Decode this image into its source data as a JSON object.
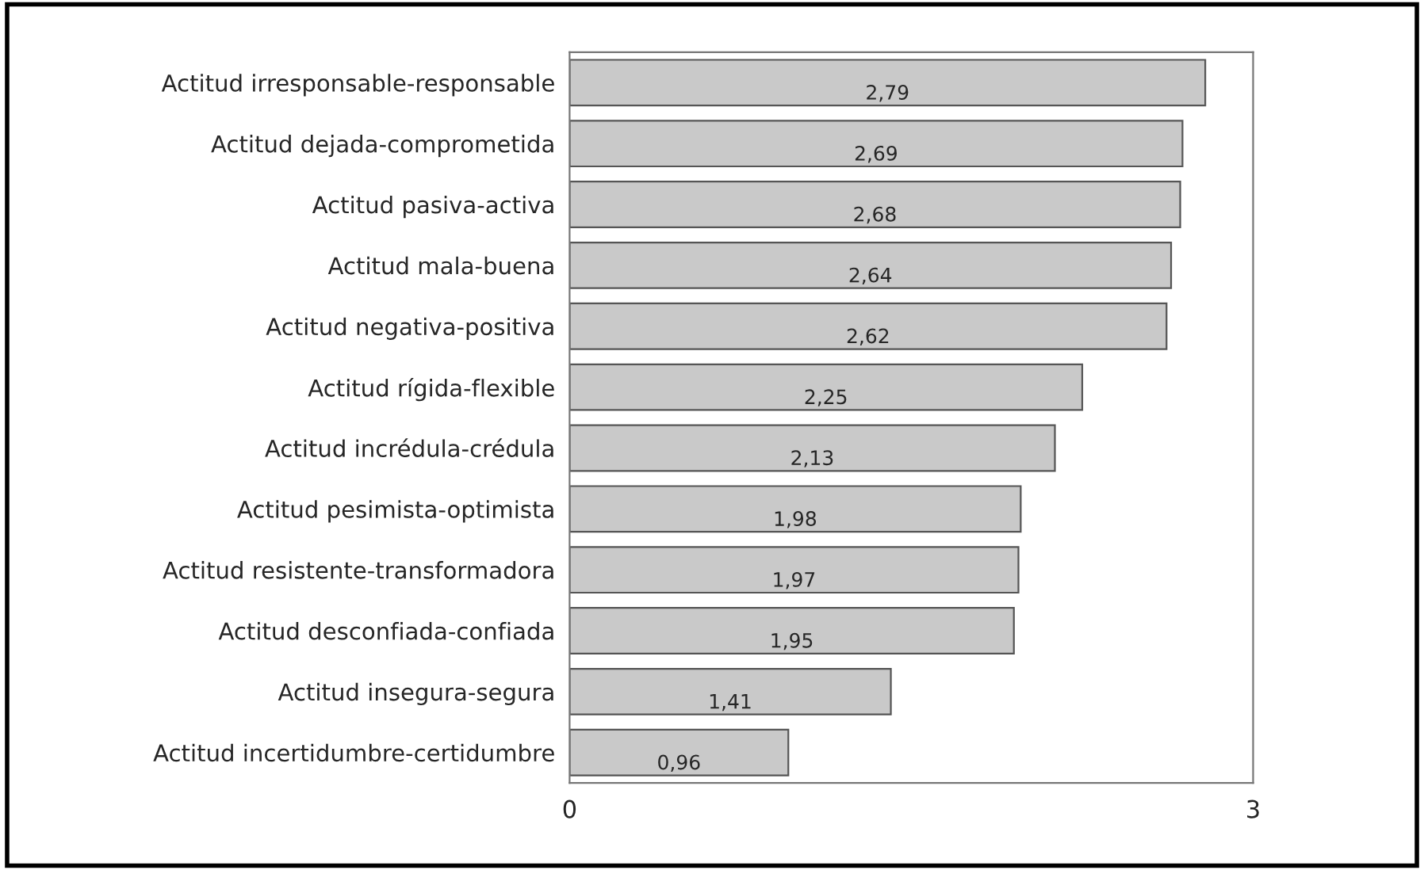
{
  "chart_data": {
    "type": "bar",
    "orientation": "horizontal",
    "categories": [
      "Actitud irresponsable-responsable",
      "Actitud dejada-comprometida",
      "Actitud pasiva-activa",
      "Actitud mala-buena",
      "Actitud negativa-positiva",
      "Actitud rígida-flexible",
      "Actitud incrédula-crédula",
      "Actitud pesimista-optimista",
      "Actitud resistente-transformadora",
      "Actitud desconfiada-confiada",
      "Actitud insegura-segura",
      "Actitud incertidumbre-certidumbre"
    ],
    "values": [
      2.79,
      2.69,
      2.68,
      2.64,
      2.62,
      2.25,
      2.13,
      1.98,
      1.97,
      1.95,
      1.41,
      0.96
    ],
    "value_labels": [
      "2,79",
      "2,69",
      "2,68",
      "2,64",
      "2,62",
      "2,25",
      "2,13",
      "1,98",
      "1,97",
      "1,95",
      "1,41",
      "0,96"
    ],
    "color": "#c9c9c9",
    "xlim": [
      0,
      3
    ],
    "xticks": [
      0,
      3
    ],
    "grid": false,
    "legend": false
  }
}
